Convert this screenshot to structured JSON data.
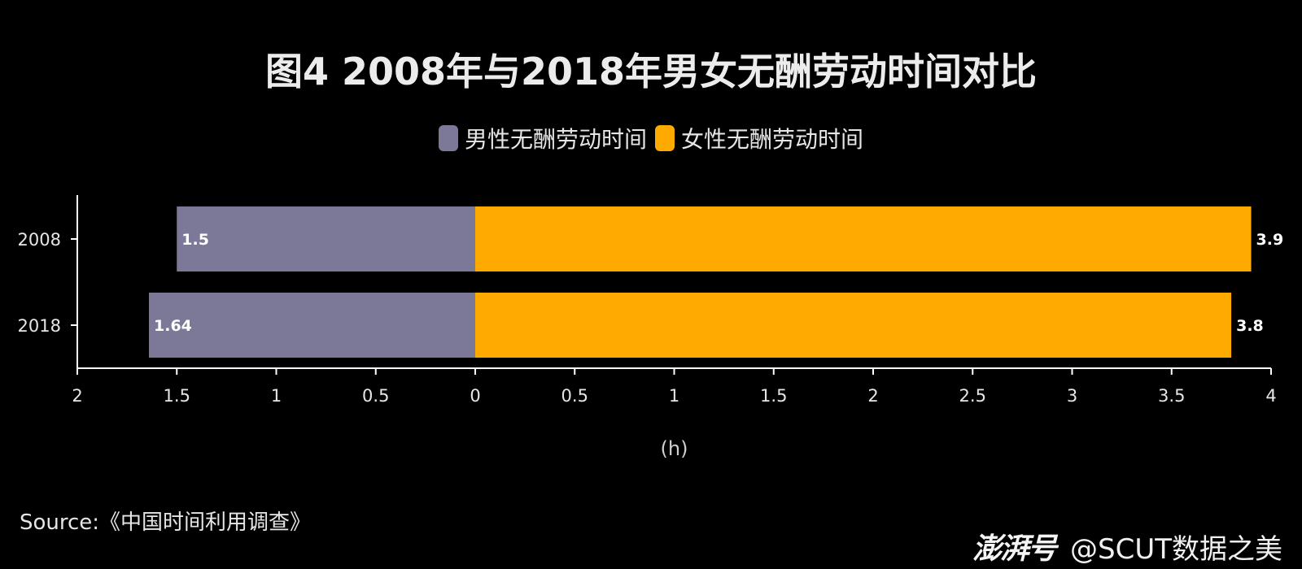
{
  "chart_data": {
    "type": "bar",
    "orientation": "horizontal-diverging",
    "title": "图4 2008年与2018年男女无酬劳动时间对比",
    "xlabel": "(h)",
    "categories": [
      "2008",
      "2018"
    ],
    "series": [
      {
        "name": "男性无酬劳动时间",
        "values": [
          1.5,
          1.64
        ],
        "color": "#7c7898",
        "direction": "left"
      },
      {
        "name": "女性无酬劳动时间",
        "values": [
          3.9,
          3.8
        ],
        "color": "#ffaa00",
        "direction": "right"
      }
    ],
    "data_labels": {
      "male": [
        "1.5",
        "1.64"
      ],
      "female": [
        "3.9",
        "3.8"
      ]
    },
    "xlim": [
      -2,
      4
    ],
    "xticks": [
      {
        "value": -2,
        "label": "2"
      },
      {
        "value": -1.5,
        "label": "1.5"
      },
      {
        "value": -1,
        "label": "1"
      },
      {
        "value": -0.5,
        "label": "0.5"
      },
      {
        "value": 0,
        "label": "0"
      },
      {
        "value": 0.5,
        "label": "0.5"
      },
      {
        "value": 1,
        "label": "1"
      },
      {
        "value": 1.5,
        "label": "1.5"
      },
      {
        "value": 2,
        "label": "2"
      },
      {
        "value": 2.5,
        "label": "2.5"
      },
      {
        "value": 3,
        "label": "3"
      },
      {
        "value": 3.5,
        "label": "3.5"
      },
      {
        "value": 4,
        "label": "4"
      }
    ],
    "grid": false,
    "legend_position": "top-center"
  },
  "legend": {
    "male_label": "男性无酬劳动时间",
    "female_label": "女性无酬劳动时间"
  },
  "footer": {
    "source": "Source:《中国时间利用调查》",
    "watermark_logo": "澎湃号",
    "watermark_account": "@SCUT数据之美"
  },
  "colors": {
    "background": "#000000",
    "male": "#7c7898",
    "female": "#ffaa00",
    "axis": "#ffffff"
  }
}
